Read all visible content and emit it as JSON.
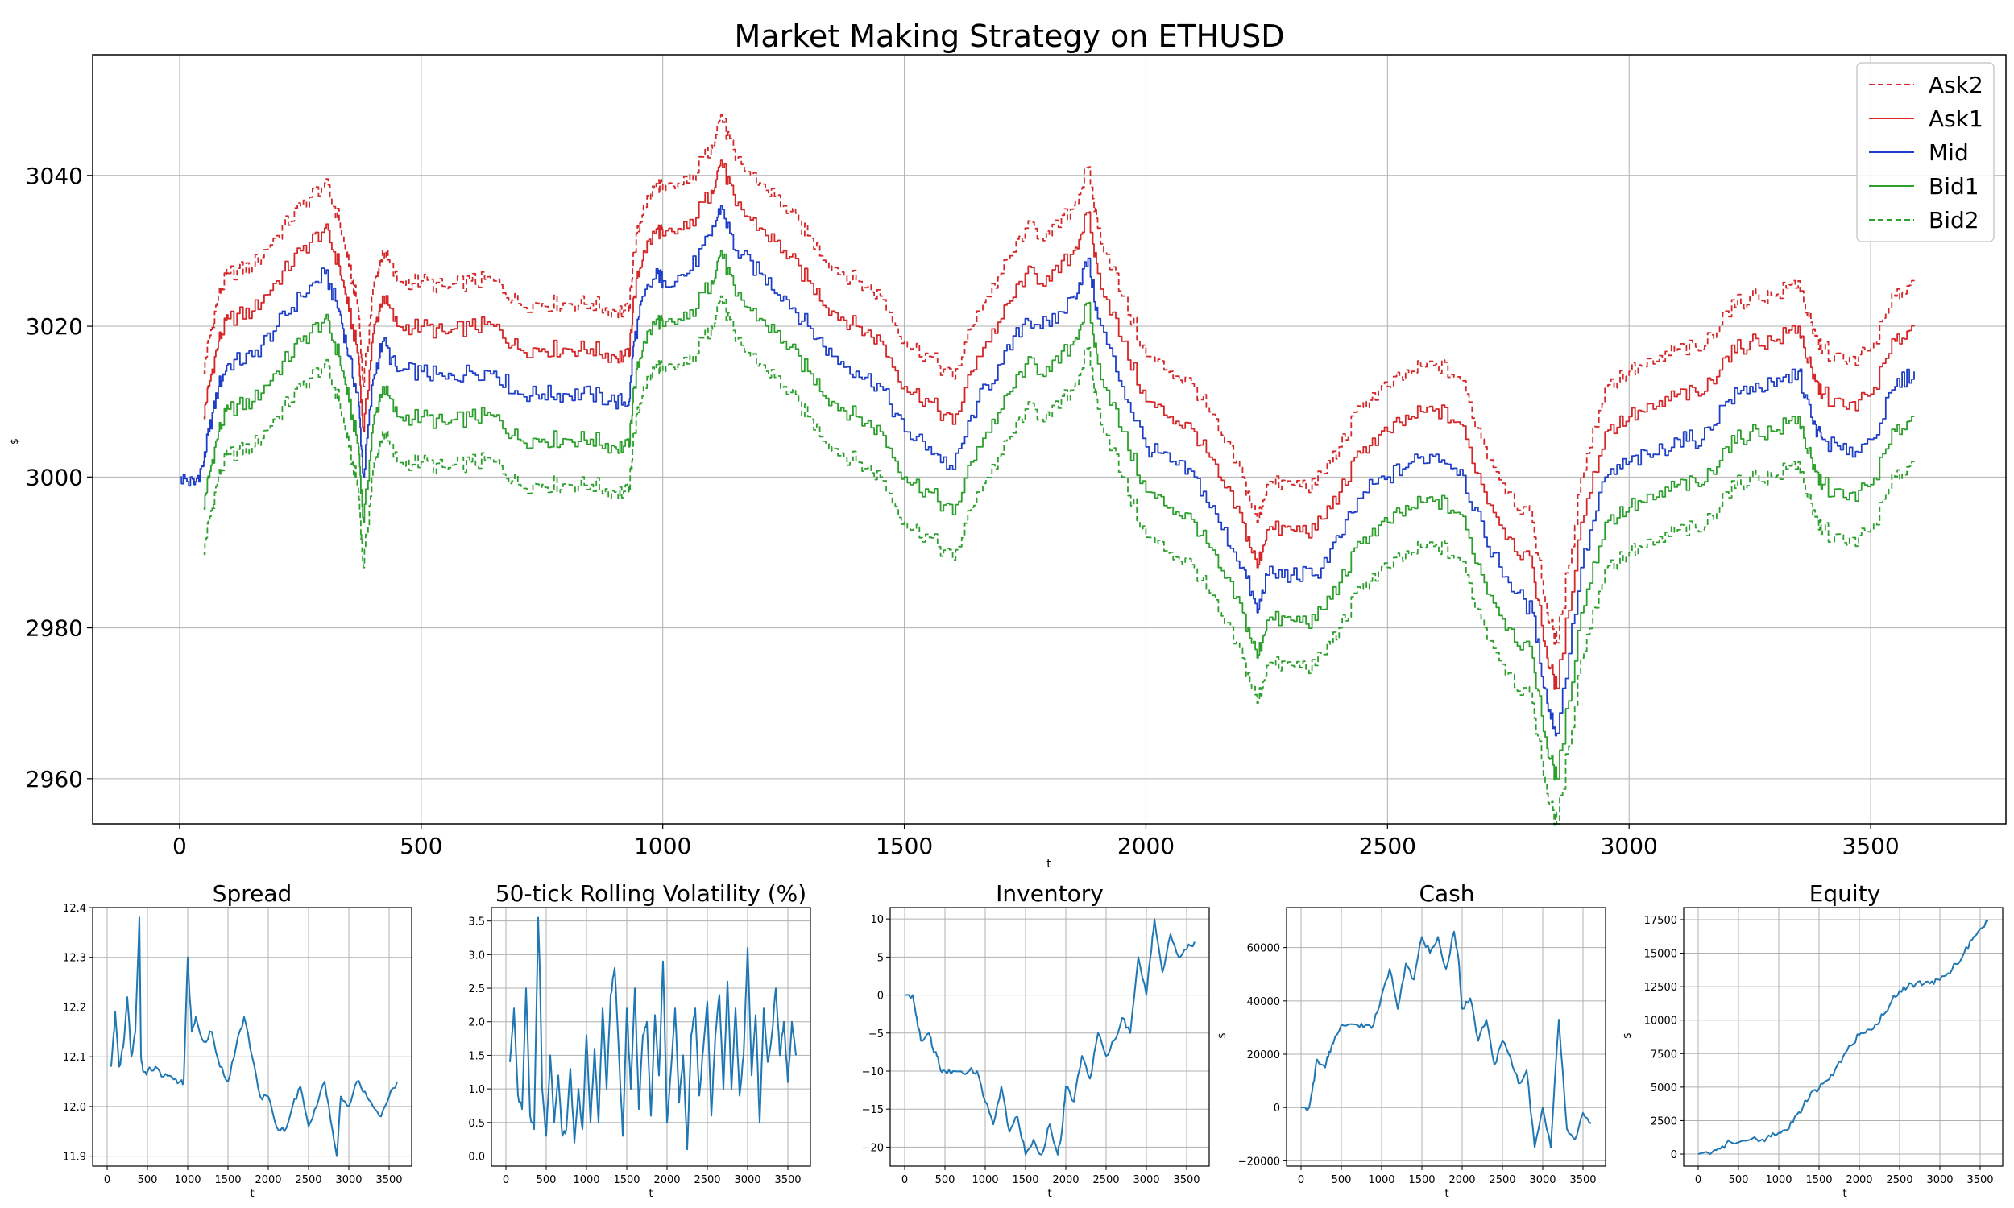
{
  "colors": {
    "ask": "#d62728",
    "mid": "#1f3fc8",
    "bid": "#2ca02c",
    "small": "#1f77b4",
    "grid": "#b0b0b0"
  },
  "chart_data": [
    {
      "id": "main",
      "type": "line",
      "title": "Market Making Strategy on ETHUSD",
      "xlabel": "t",
      "ylabel": "$",
      "xlim": [
        -180,
        3780
      ],
      "ylim": [
        2954,
        3056
      ],
      "xticks": [
        0,
        500,
        1000,
        1500,
        2000,
        2500,
        3000,
        3500
      ],
      "yticks": [
        2960,
        2980,
        3000,
        3020,
        3040
      ],
      "grid": true,
      "legend_position": "top-right",
      "legend": [
        "Ask2",
        "Ask1",
        "Mid",
        "Bid1",
        "Bid2"
      ],
      "mid_x": [
        0,
        30,
        50,
        60,
        80,
        100,
        150,
        200,
        250,
        300,
        330,
        350,
        370,
        380,
        400,
        420,
        450,
        500,
        550,
        600,
        650,
        700,
        750,
        800,
        850,
        900,
        930,
        940,
        960,
        990,
        1000,
        1050,
        1100,
        1120,
        1150,
        1200,
        1250,
        1300,
        1350,
        1400,
        1450,
        1500,
        1550,
        1600,
        1650,
        1700,
        1750,
        1800,
        1850,
        1880,
        1900,
        1950,
        2000,
        2050,
        2100,
        2150,
        2200,
        2230,
        2250,
        2300,
        2350,
        2400,
        2450,
        2500,
        2550,
        2600,
        2650,
        2700,
        2750,
        2800,
        2830,
        2850,
        2900,
        2950,
        3000,
        3050,
        3100,
        3150,
        3200,
        3250,
        3300,
        3350,
        3380,
        3400,
        3450,
        3500,
        3550,
        3590
      ],
      "mid_y": [
        3000,
        2999,
        3002,
        3006,
        3012,
        3015,
        3016,
        3020,
        3024,
        3027,
        3022,
        3016,
        3010,
        3000,
        3013,
        3018,
        3014,
        3014,
        3013,
        3014,
        3014,
        3011,
        3011,
        3011,
        3011,
        3010,
        3010,
        3018,
        3024,
        3027,
        3026,
        3027,
        3032,
        3036,
        3030,
        3027,
        3024,
        3020,
        3016,
        3014,
        3012,
        3006,
        3004,
        3001,
        3010,
        3015,
        3021,
        3020,
        3024,
        3029,
        3021,
        3012,
        3004,
        3002,
        3000,
        2994,
        2988,
        2982,
        2987,
        2987,
        2987,
        2992,
        2998,
        3000,
        3002,
        3003,
        3001,
        2992,
        2986,
        2982,
        2970,
        2966,
        2988,
        3000,
        3002,
        3003,
        3005,
        3005,
        3010,
        3012,
        3012,
        3014,
        3007,
        3005,
        3003,
        3005,
        3012,
        3014
      ],
      "offsets": {
        "Ask2": 12,
        "Ask1": 6,
        "Mid": 0,
        "Bid1": -6,
        "Bid2": -12
      }
    },
    {
      "id": "spread",
      "type": "line",
      "title": "Spread",
      "xlabel": "t",
      "ylabel": "",
      "xlim": [
        -180,
        3780
      ],
      "ylim": [
        11.88,
        12.4
      ],
      "xticks": [
        0,
        500,
        1000,
        1500,
        2000,
        2500,
        3000,
        3500
      ],
      "yticks": [
        "11.9",
        "12.0",
        "12.1",
        "12.2",
        "12.3",
        "12.4"
      ],
      "ytick_values": [
        11.9,
        12.0,
        12.1,
        12.2,
        12.3,
        12.4
      ],
      "x": [
        50,
        100,
        150,
        200,
        250,
        300,
        350,
        400,
        420,
        450,
        500,
        600,
        700,
        800,
        900,
        950,
        1000,
        1050,
        1100,
        1200,
        1300,
        1400,
        1500,
        1600,
        1700,
        1800,
        1900,
        2000,
        2100,
        2200,
        2300,
        2400,
        2500,
        2600,
        2700,
        2800,
        2850,
        2900,
        3000,
        3100,
        3200,
        3300,
        3400,
        3500,
        3600
      ],
      "y": [
        12.08,
        12.19,
        12.08,
        12.12,
        12.22,
        12.1,
        12.15,
        12.38,
        12.1,
        12.07,
        12.07,
        12.08,
        12.06,
        12.06,
        12.05,
        12.05,
        12.3,
        12.15,
        12.18,
        12.13,
        12.15,
        12.08,
        12.05,
        12.12,
        12.18,
        12.1,
        12.02,
        12.02,
        11.96,
        11.95,
        12.0,
        12.04,
        11.96,
        12.0,
        12.05,
        11.95,
        11.9,
        12.02,
        12.0,
        12.05,
        12.03,
        12.0,
        11.98,
        12.02,
        12.05
      ]
    },
    {
      "id": "volatility",
      "type": "line",
      "title": "50-tick Rolling Volatility (%)",
      "xlabel": "t",
      "ylabel": "",
      "xlim": [
        -180,
        3780
      ],
      "ylim": [
        -0.15,
        3.7
      ],
      "xticks": [
        0,
        500,
        1000,
        1500,
        2000,
        2500,
        3000,
        3500
      ],
      "yticks": [
        "0.0",
        "0.5",
        "1.0",
        "1.5",
        "2.0",
        "2.5",
        "3.0",
        "3.5"
      ],
      "ytick_values": [
        0,
        0.5,
        1.0,
        1.5,
        2.0,
        2.5,
        3.0,
        3.5
      ],
      "x": [
        50,
        100,
        150,
        200,
        250,
        300,
        350,
        400,
        420,
        450,
        500,
        550,
        600,
        650,
        700,
        750,
        800,
        850,
        900,
        950,
        1000,
        1050,
        1100,
        1150,
        1200,
        1250,
        1300,
        1350,
        1400,
        1450,
        1500,
        1550,
        1600,
        1650,
        1700,
        1750,
        1800,
        1850,
        1900,
        1950,
        2000,
        2050,
        2100,
        2150,
        2200,
        2250,
        2300,
        2350,
        2400,
        2450,
        2500,
        2550,
        2600,
        2650,
        2700,
        2750,
        2800,
        2850,
        2900,
        2950,
        3000,
        3050,
        3100,
        3150,
        3200,
        3250,
        3300,
        3350,
        3400,
        3450,
        3500,
        3550,
        3600
      ],
      "y": [
        1.4,
        2.2,
        0.9,
        0.7,
        2.5,
        0.6,
        0.4,
        3.55,
        2.8,
        1.0,
        0.3,
        1.5,
        0.5,
        1.2,
        0.3,
        0.4,
        1.3,
        0.2,
        1.0,
        0.4,
        1.8,
        0.5,
        1.6,
        0.5,
        2.2,
        1.0,
        2.4,
        2.8,
        1.6,
        0.3,
        2.2,
        1.0,
        2.5,
        0.7,
        1.8,
        2.0,
        0.6,
        2.1,
        1.2,
        2.9,
        0.5,
        1.3,
        2.2,
        0.8,
        1.5,
        0.1,
        1.8,
        2.2,
        0.9,
        1.6,
        2.3,
        0.6,
        1.8,
        2.4,
        1.0,
        2.6,
        1.0,
        2.2,
        0.9,
        1.5,
        3.1,
        1.2,
        2.1,
        0.5,
        2.2,
        1.4,
        1.8,
        2.5,
        1.5,
        2.0,
        1.1,
        2.0,
        1.5
      ]
    },
    {
      "id": "inventory",
      "type": "line",
      "title": "Inventory",
      "xlabel": "t",
      "ylabel": "",
      "xlim": [
        -180,
        3780
      ],
      "ylim": [
        -22.5,
        11.5
      ],
      "xticks": [
        0,
        500,
        1000,
        1500,
        2000,
        2500,
        3000,
        3500
      ],
      "yticks": [
        "−20",
        "−15",
        "−10",
        "−5",
        "0",
        "5",
        "10"
      ],
      "ytick_values": [
        -20,
        -15,
        -10,
        -5,
        0,
        5,
        10
      ],
      "x": [
        0,
        100,
        150,
        200,
        300,
        350,
        400,
        450,
        500,
        600,
        800,
        900,
        1000,
        1100,
        1200,
        1300,
        1400,
        1500,
        1600,
        1700,
        1800,
        1900,
        1950,
        2000,
        2100,
        2200,
        2300,
        2400,
        2500,
        2600,
        2700,
        2800,
        2900,
        3000,
        3050,
        3100,
        3200,
        3300,
        3400,
        3500,
        3600
      ],
      "y": [
        0,
        0,
        -3,
        -6,
        -5,
        -7,
        -8,
        -10,
        -10,
        -10,
        -10,
        -10,
        -14,
        -17,
        -12,
        -18,
        -16,
        -21,
        -19,
        -21,
        -17,
        -21,
        -18,
        -12,
        -14,
        -8,
        -11,
        -5,
        -8,
        -6,
        -3,
        -5,
        5,
        0,
        5,
        10,
        3,
        8,
        5,
        6,
        7
      ]
    },
    {
      "id": "cash",
      "type": "line",
      "title": "Cash",
      "xlabel": "t",
      "ylabel": "$",
      "xlim": [
        -180,
        3780
      ],
      "ylim": [
        -22000,
        75000
      ],
      "xticks": [
        0,
        500,
        1000,
        1500,
        2000,
        2500,
        3000,
        3500
      ],
      "yticks": [
        "−20000",
        "0",
        "20000",
        "40000",
        "60000"
      ],
      "ytick_values": [
        -20000,
        0,
        20000,
        40000,
        60000
      ],
      "x": [
        0,
        100,
        150,
        200,
        300,
        350,
        400,
        500,
        700,
        800,
        900,
        1000,
        1100,
        1200,
        1300,
        1400,
        1500,
        1600,
        1700,
        1800,
        1900,
        1950,
        2000,
        2100,
        2200,
        2300,
        2400,
        2500,
        2600,
        2700,
        2800,
        2900,
        3000,
        3100,
        3200,
        3300,
        3400,
        3500,
        3600
      ],
      "y": [
        0,
        0,
        9000,
        18000,
        15000,
        21000,
        24000,
        31000,
        31000,
        31000,
        31000,
        42000,
        52000,
        37000,
        54000,
        48000,
        64000,
        58000,
        64000,
        52000,
        66000,
        57000,
        37000,
        41000,
        25000,
        33000,
        16000,
        25000,
        19000,
        9000,
        14000,
        -15000,
        0,
        -15000,
        33000,
        -8000,
        -12000,
        -2000,
        -6000
      ]
    },
    {
      "id": "equity",
      "type": "line",
      "title": "Equity",
      "xlabel": "t",
      "ylabel": "$",
      "xlim": [
        -180,
        3780
      ],
      "ylim": [
        -900,
        18400
      ],
      "xticks": [
        0,
        500,
        1000,
        1500,
        2000,
        2500,
        3000,
        3500
      ],
      "yticks": [
        "0",
        "2500",
        "5000",
        "7500",
        "10000",
        "12500",
        "15000",
        "17500"
      ],
      "ytick_values": [
        0,
        2500,
        5000,
        7500,
        10000,
        12500,
        15000,
        17500
      ],
      "x": [
        0,
        200,
        300,
        400,
        600,
        800,
        900,
        1000,
        1100,
        1200,
        1300,
        1400,
        1500,
        1600,
        1700,
        1800,
        1900,
        2000,
        2100,
        2200,
        2300,
        2400,
        2500,
        2600,
        2700,
        2800,
        2900,
        3000,
        3100,
        3200,
        3300,
        3400,
        3500,
        3600
      ],
      "y": [
        0,
        300,
        600,
        900,
        1000,
        1100,
        1300,
        1600,
        1800,
        2800,
        3500,
        4600,
        4900,
        5500,
        6300,
        7300,
        8100,
        8900,
        9300,
        9700,
        10400,
        11400,
        12200,
        12500,
        12700,
        12700,
        12900,
        13000,
        13500,
        14200,
        15000,
        16000,
        16800,
        17400
      ]
    }
  ]
}
